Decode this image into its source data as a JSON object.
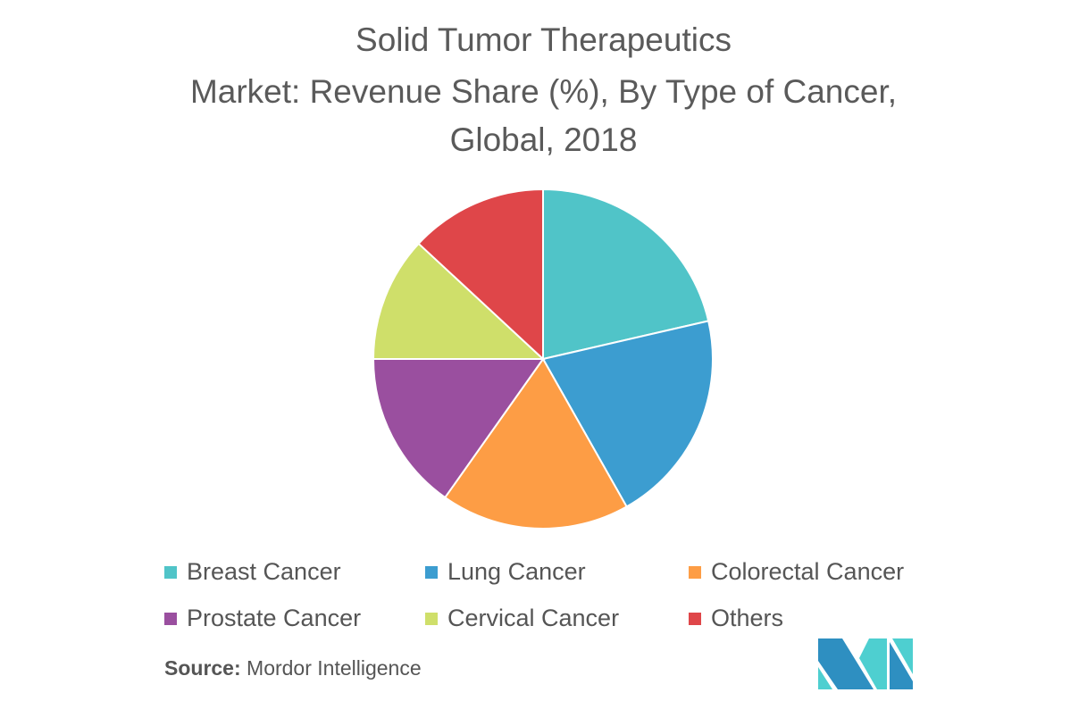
{
  "chart_data": {
    "type": "pie",
    "title_lines": [
      "Solid Tumor Therapeutics",
      "Market: Revenue Share (%), By Type of Cancer,",
      "Global, 2018"
    ],
    "start_angle": "12 o'clock",
    "direction": "clockwise",
    "legend_placement": "bottom",
    "slices": [
      {
        "label": "Breast Cancer",
        "value": 21.4,
        "color": "#50C4C8"
      },
      {
        "label": "Lung Cancer",
        "value": 20.4,
        "color": "#3C9DD0"
      },
      {
        "label": "Colorectal Cancer",
        "value": 18.0,
        "color": "#FD9D45"
      },
      {
        "label": "Prostate Cancer",
        "value": 15.2,
        "color": "#9A4F9F"
      },
      {
        "label": "Cervical Cancer",
        "value": 11.9,
        "color": "#CFDF6A"
      },
      {
        "label": "Others",
        "value": 13.1,
        "color": "#DF4649"
      }
    ]
  },
  "source": {
    "label": "Source:",
    "text": "Mordor Intelligence"
  },
  "logo": {
    "text": "Mordor Intelligence",
    "colors": [
      "#2E8FC1",
      "#4ECFD0"
    ]
  }
}
